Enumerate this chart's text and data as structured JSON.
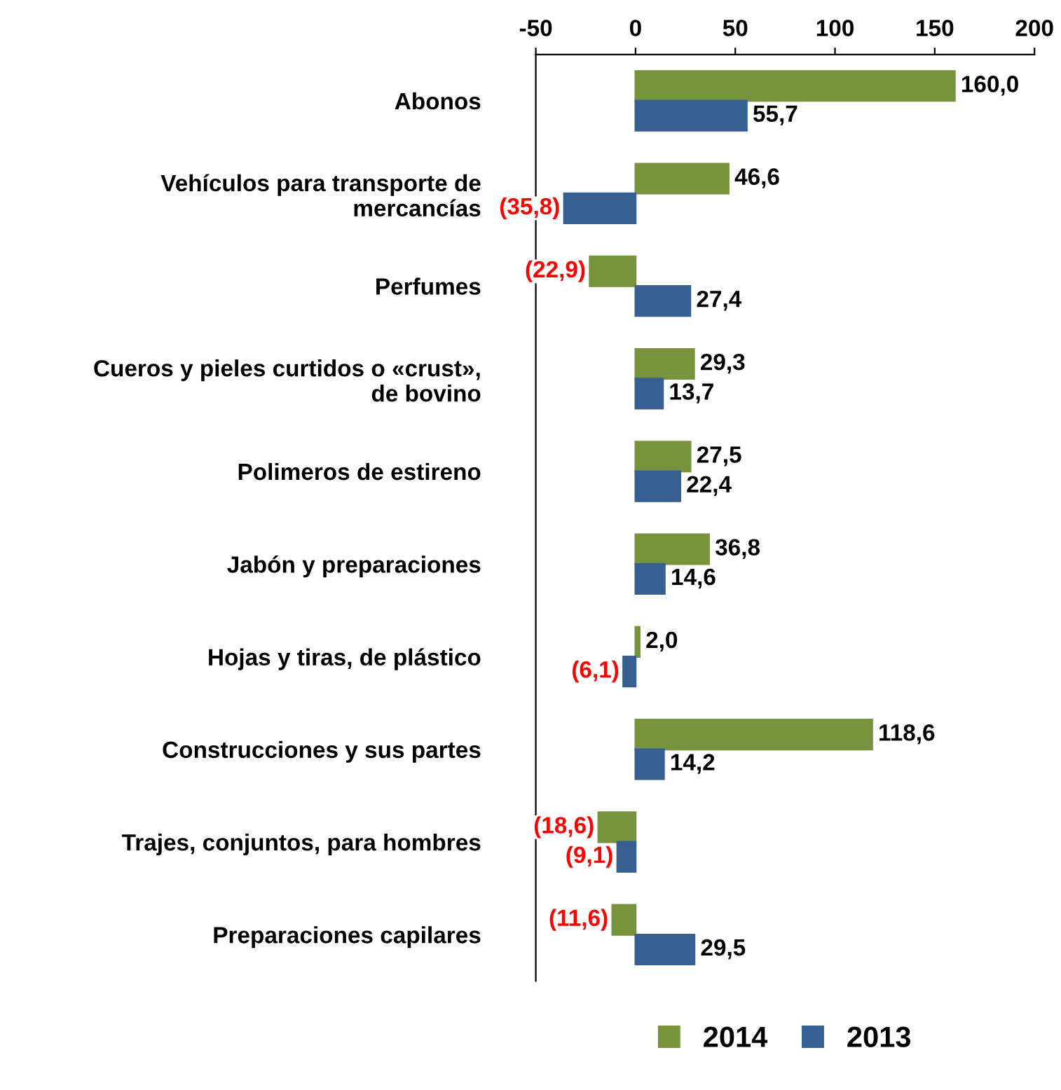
{
  "chart_data": {
    "type": "bar",
    "orientation": "horizontal",
    "categories": [
      "Abonos",
      "Vehículos para transporte de\nmercancías",
      "Perfumes",
      "Cueros y pieles curtidos o «crust»,\nde bovino",
      "Polimeros de estireno",
      "Jabón y preparaciones",
      "Hojas y tiras, de plástico",
      "Construcciones y sus partes",
      "Trajes, conjuntos, para hombres",
      "Preparaciones capilares"
    ],
    "series": [
      {
        "name": "2014",
        "color": "#77933c",
        "values": [
          160.0,
          46.6,
          -22.9,
          29.3,
          27.5,
          36.8,
          2.0,
          118.6,
          -18.6,
          -11.6
        ],
        "value_labels": [
          "160,0",
          "46,6",
          "(22,9)",
          "29,3",
          "27,5",
          "36,8",
          "2,0",
          "118,6",
          "(18,6)",
          "(11,6)"
        ]
      },
      {
        "name": "2013",
        "color": "#376092",
        "values": [
          55.7,
          -35.8,
          27.4,
          13.7,
          22.4,
          14.6,
          -6.1,
          14.2,
          -9.1,
          29.5
        ],
        "value_labels": [
          "55,7",
          "(35,8)",
          "27,4",
          "13,7",
          "22,4",
          "14,6",
          "(6,1)",
          "14,2",
          "(9,1)",
          "29,5"
        ]
      }
    ],
    "xlim": [
      -50,
      200
    ],
    "xticks": [
      -50,
      0,
      50,
      100,
      150,
      200
    ],
    "grid": false,
    "legend": "bottom"
  }
}
